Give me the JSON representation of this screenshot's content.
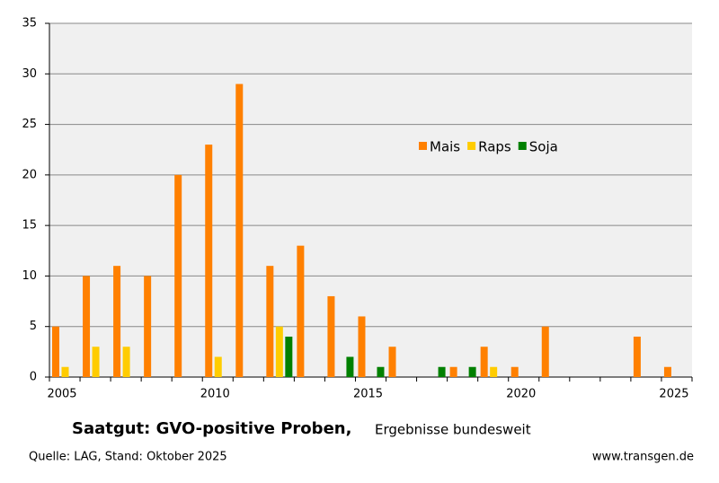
{
  "chart_data": {
    "type": "bar",
    "title": "Saatgut:  GVO-positive Proben,",
    "subtitle": "Ergebnisse bundesweit",
    "source": "Quelle: LAG, Stand: Oktober 2025",
    "website": "www.transgen.de",
    "categories": [
      "2005",
      null,
      null,
      null,
      null,
      "2010",
      null,
      null,
      null,
      null,
      "2015",
      null,
      null,
      null,
      null,
      "2020",
      null,
      null,
      null,
      null,
      "2025"
    ],
    "series": [
      {
        "name": "Mais",
        "color": "#ff8000",
        "values": [
          5,
          10,
          11,
          10,
          20,
          23,
          29,
          11,
          13,
          8,
          6,
          3,
          0,
          1,
          3,
          1,
          5,
          0,
          0,
          4,
          1
        ]
      },
      {
        "name": "Raps",
        "color": "#ffcc00",
        "values": [
          1,
          3,
          3,
          0,
          0,
          2,
          0,
          5,
          0,
          0,
          0,
          0,
          0,
          0,
          1,
          0,
          0,
          0,
          0,
          0,
          0
        ]
      },
      {
        "name": "Soja",
        "color": "#008000",
        "values": [
          0,
          0,
          0,
          0,
          0,
          0,
          0,
          4,
          0,
          2,
          1,
          0,
          1,
          1,
          0,
          0,
          0,
          0,
          0,
          0,
          0
        ]
      }
    ],
    "ylim": [
      0,
      35
    ],
    "yticks": [
      0,
      5,
      10,
      15,
      20,
      25,
      30,
      35
    ],
    "grid": true
  }
}
